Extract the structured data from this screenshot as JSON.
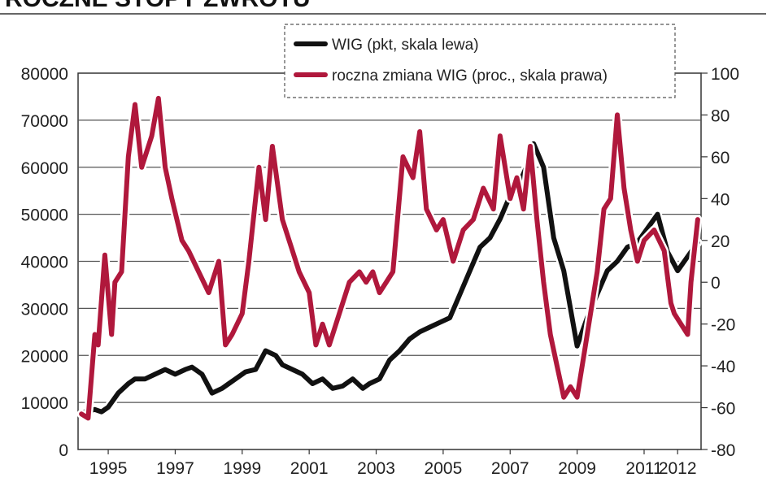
{
  "page": {
    "title_fragment": "ROCZNE STOPY ZWROTU"
  },
  "chart_data": {
    "type": "line",
    "title": "",
    "x_ticks": [
      "1995",
      "1997",
      "1999",
      "2001",
      "2003",
      "2005",
      "2007",
      "2009",
      "2011",
      "2012"
    ],
    "x_range": [
      1994.3,
      2012.9
    ],
    "y_left": {
      "label": "",
      "range": [
        0,
        80000
      ],
      "ticks": [
        "80000",
        "70000",
        "60000",
        "50000",
        "40000",
        "30000",
        "20000",
        "10000",
        "0"
      ]
    },
    "y_right": {
      "label": "",
      "range": [
        -80,
        100
      ],
      "ticks": [
        "100",
        "80",
        "60",
        "40",
        "20",
        "0",
        "-20",
        "-40",
        "-60",
        "-80"
      ]
    },
    "grid": true,
    "legend": {
      "placement": "top-right",
      "items": [
        {
          "label": "WIG (pkt, skala lewa)",
          "color": "#111111"
        },
        {
          "label": "roczna zmiana WIG (proc., skala prawa)",
          "color": "#b0183c"
        }
      ]
    },
    "series": [
      {
        "name": "WIG (pkt, skala lewa)",
        "axis": "left",
        "color": "#111111",
        "x": [
          1994.5,
          1994.8,
          1995.0,
          1995.2,
          1995.5,
          1995.8,
          1996.0,
          1996.3,
          1996.6,
          1996.9,
          1997.2,
          1997.5,
          1997.7,
          1998.0,
          1998.3,
          1998.6,
          1998.8,
          1999.0,
          1999.3,
          1999.6,
          1999.9,
          2000.2,
          2000.4,
          2000.7,
          2001.0,
          2001.3,
          2001.6,
          2001.9,
          2002.2,
          2002.5,
          2002.8,
          2003.0,
          2003.3,
          2003.6,
          2003.9,
          2004.2,
          2004.5,
          2004.8,
          2005.1,
          2005.4,
          2005.7,
          2006.0,
          2006.3,
          2006.6,
          2006.9,
          2007.2,
          2007.5,
          2007.8,
          2007.9,
          2008.2,
          2008.5,
          2008.8,
          2009.0,
          2009.2,
          2009.5,
          2009.8,
          2010.1,
          2010.4,
          2010.7,
          2011.0,
          2011.3,
          2011.6,
          2011.9,
          2012.2,
          2012.5,
          2012.8
        ],
        "values": [
          8000,
          8500,
          8000,
          9000,
          12000,
          14000,
          15000,
          15000,
          16000,
          17000,
          16000,
          17000,
          17500,
          16000,
          12000,
          13000,
          14000,
          15000,
          16500,
          17000,
          21000,
          20000,
          18000,
          17000,
          16000,
          14000,
          15000,
          13000,
          13500,
          15000,
          13000,
          14000,
          15000,
          19000,
          21000,
          23500,
          25000,
          26000,
          27000,
          28000,
          33000,
          38000,
          43000,
          45000,
          49000,
          54000,
          57000,
          62000,
          65000,
          60000,
          45000,
          38000,
          30000,
          22000,
          28000,
          33000,
          38000,
          40000,
          43000,
          44000,
          47000,
          50000,
          42000,
          38000,
          41000,
          44000
        ]
      },
      {
        "name": "roczna zmiana WIG (proc., skala prawa)",
        "axis": "right",
        "color": "#b0183c",
        "x": [
          1994.4,
          1994.6,
          1994.8,
          1994.9,
          1995.1,
          1995.3,
          1995.4,
          1995.6,
          1995.8,
          1996.0,
          1996.2,
          1996.5,
          1996.7,
          1996.9,
          1997.1,
          1997.4,
          1997.6,
          1997.9,
          1998.2,
          1998.5,
          1998.7,
          1998.9,
          1999.2,
          1999.4,
          1999.7,
          1999.9,
          2000.1,
          2000.4,
          2000.7,
          2000.9,
          2001.2,
          2001.4,
          2001.6,
          2001.8,
          2002.1,
          2002.4,
          2002.7,
          2002.9,
          2003.1,
          2003.3,
          2003.5,
          2003.7,
          2004.0,
          2004.3,
          2004.5,
          2004.7,
          2005.0,
          2005.2,
          2005.5,
          2005.8,
          2006.1,
          2006.4,
          2006.7,
          2006.9,
          2007.2,
          2007.4,
          2007.6,
          2007.8,
          2008.0,
          2008.2,
          2008.4,
          2008.6,
          2008.8,
          2009.0,
          2009.2,
          2009.4,
          2009.6,
          2009.8,
          2010.0,
          2010.2,
          2010.4,
          2010.6,
          2010.8,
          2011.0,
          2011.2,
          2011.5,
          2011.8,
          2012.0,
          2012.1,
          2012.3,
          2012.5,
          2012.6,
          2012.8
        ],
        "values": [
          -63,
          -65,
          -25,
          -30,
          13,
          -25,
          0,
          5,
          60,
          85,
          55,
          70,
          88,
          55,
          40,
          20,
          15,
          5,
          -5,
          10,
          -30,
          -25,
          -15,
          10,
          55,
          30,
          65,
          30,
          15,
          5,
          -5,
          -30,
          -20,
          -30,
          -15,
          0,
          5,
          0,
          5,
          -5,
          0,
          5,
          60,
          50,
          72,
          35,
          25,
          30,
          10,
          25,
          30,
          45,
          35,
          70,
          40,
          50,
          35,
          65,
          30,
          0,
          -25,
          -40,
          -55,
          -50,
          -55,
          -35,
          -15,
          5,
          35,
          40,
          80,
          45,
          25,
          10,
          20,
          25,
          15,
          -10,
          -15,
          -20,
          -25,
          0,
          30
        ]
      }
    ]
  }
}
